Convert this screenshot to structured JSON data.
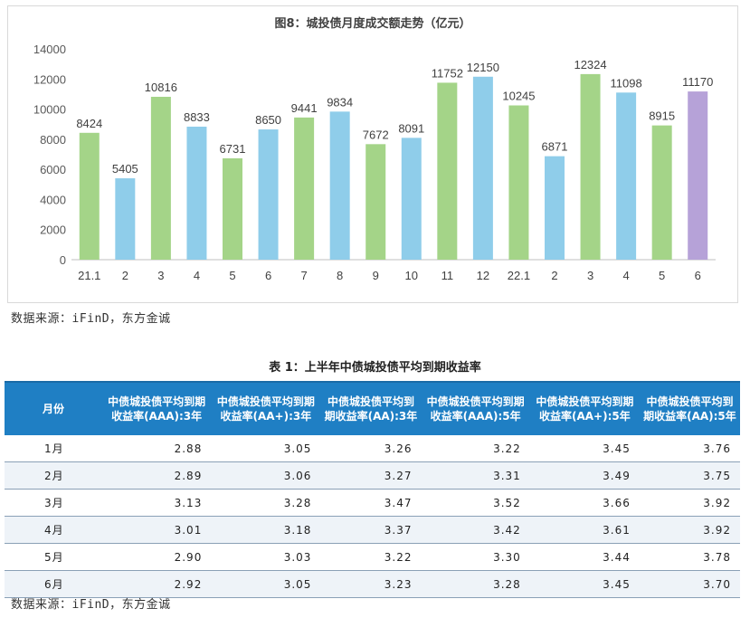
{
  "chart_data": {
    "type": "bar",
    "title": "图8：城投债月度成交额走势（亿元）",
    "categories": [
      "21.1",
      "2",
      "3",
      "4",
      "5",
      "6",
      "7",
      "8",
      "9",
      "10",
      "11",
      "12",
      "22.1",
      "2",
      "3",
      "4",
      "5",
      "6"
    ],
    "values": [
      8424,
      5405,
      10816,
      8833,
      6731,
      8650,
      9441,
      9834,
      7672,
      8091,
      11752,
      12150,
      10245,
      6871,
      12324,
      11098,
      8915,
      11170
    ],
    "bar_colors": [
      "#a4d488",
      "#8fcdea",
      "#a4d488",
      "#8fcdea",
      "#a4d488",
      "#8fcdea",
      "#a4d488",
      "#8fcdea",
      "#a4d488",
      "#8fcdea",
      "#a4d488",
      "#8fcdea",
      "#a4d488",
      "#8fcdea",
      "#a4d488",
      "#8fcdea",
      "#a4d488",
      "#b6a2d8"
    ],
    "ylim": [
      0,
      14000
    ],
    "yticks": [
      0,
      2000,
      4000,
      6000,
      8000,
      10000,
      12000,
      14000
    ],
    "grid": false
  },
  "source_top": "数据来源：iFinD，东方金诚",
  "table": {
    "title": "表 1：上半年中债城投债平均到期收益率",
    "headers": [
      "月份",
      "中债城投债平均到期收益率(AAA):3年",
      "中债城投债平均到期收益率(AA+):3年",
      "中债城投债平均到期收益率(AA):3年",
      "中债城投债平均到期收益率(AAA):5年",
      "中债城投债平均到期收益率(AA+):5年",
      "中债城投债平均到期收益率(AA):5年"
    ],
    "rows": [
      [
        "1月",
        "2.88",
        "3.05",
        "3.26",
        "3.22",
        "3.45",
        "3.76"
      ],
      [
        "2月",
        "2.89",
        "3.06",
        "3.27",
        "3.31",
        "3.49",
        "3.75"
      ],
      [
        "3月",
        "3.13",
        "3.28",
        "3.47",
        "3.52",
        "3.66",
        "3.92"
      ],
      [
        "4月",
        "3.01",
        "3.18",
        "3.37",
        "3.42",
        "3.61",
        "3.92"
      ],
      [
        "5月",
        "2.90",
        "3.03",
        "3.22",
        "3.30",
        "3.44",
        "3.78"
      ],
      [
        "6月",
        "2.92",
        "3.05",
        "3.23",
        "3.28",
        "3.45",
        "3.70"
      ]
    ]
  },
  "source_bottom": "数据来源：iFinD，东方金诚"
}
